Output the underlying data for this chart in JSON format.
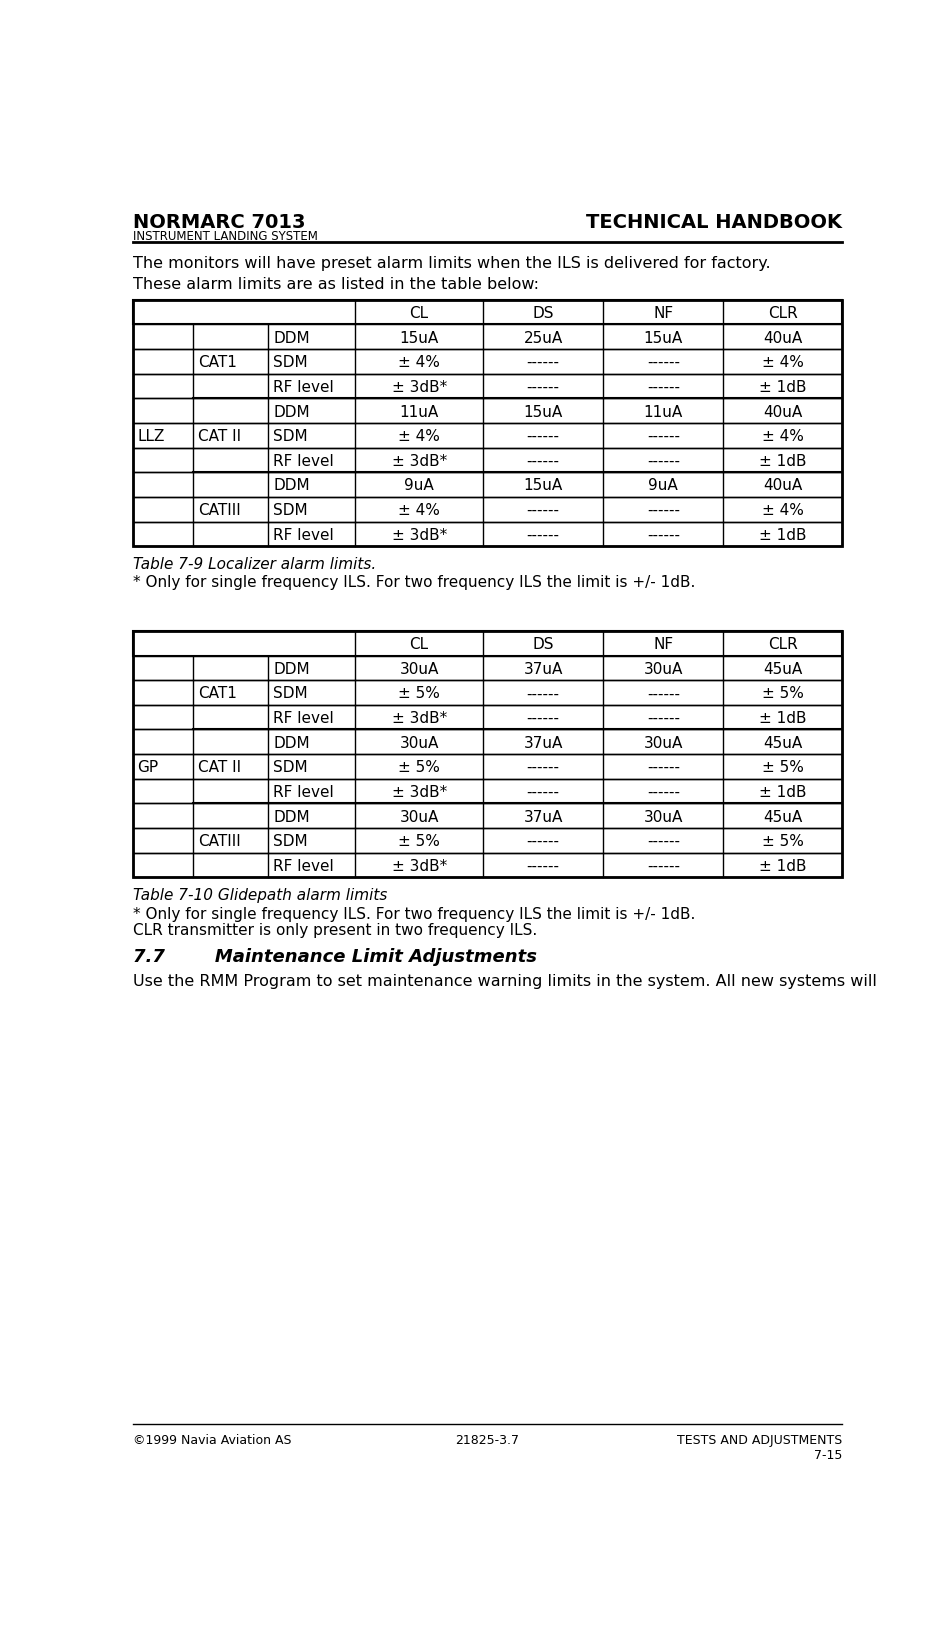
{
  "header_left": "NORMARC 7013",
  "header_right": "TECHNICAL HANDBOOK",
  "subheader": "INSTRUMENT LANDING SYSTEM",
  "footer_left": "©1999 Navia Aviation AS",
  "footer_center": "21825-3.7",
  "footer_right": "TESTS AND ADJUSTMENTS",
  "footer_page": "7-15",
  "body_text1": "The monitors will have preset alarm limits when the ILS is delivered for factory.",
  "body_text2": "These alarm limits are as listed in the table below:",
  "table_caption1": "Table 7-9 Localizer alarm limits.",
  "table_note1": "* Only for single frequency ILS. For two frequency ILS the limit is +/- 1dB.",
  "table_caption2": "Table 7-10 Glidepath alarm limits",
  "table_note2": "* Only for single frequency ILS. For two frequency ILS the limit is +/- 1dB.",
  "clr_note": "CLR transmitter is only present in two frequency ILS.",
  "section_title": "7.7        Maintenance Limit Adjustments",
  "section_text": "Use the RMM Program to set maintenance warning limits in the system. All new systems will",
  "llz_table": {
    "col_headers": [
      "CL",
      "DS",
      "NF",
      "CLR"
    ],
    "row_label": "LLZ",
    "categories": [
      "CAT1",
      "CAT II",
      "CATIII"
    ],
    "rows": [
      [
        "DDM",
        "15uA",
        "25uA",
        "15uA",
        "40uA"
      ],
      [
        "SDM",
        "± 4%",
        "------",
        "------",
        "± 4%"
      ],
      [
        "RF level",
        "± 3dB*",
        "------",
        "------",
        "± 1dB"
      ],
      [
        "DDM",
        "11uA",
        "15uA",
        "11uA",
        "40uA"
      ],
      [
        "SDM",
        "± 4%",
        "------",
        "------",
        "± 4%"
      ],
      [
        "RF level",
        "± 3dB*",
        "------",
        "------",
        "± 1dB"
      ],
      [
        "DDM",
        "9uA",
        "15uA",
        "9uA",
        "40uA"
      ],
      [
        "SDM",
        "± 4%",
        "------",
        "------",
        "± 4%"
      ],
      [
        "RF level",
        "± 3dB*",
        "------",
        "------",
        "± 1dB"
      ]
    ]
  },
  "gp_table": {
    "col_headers": [
      "CL",
      "DS",
      "NF",
      "CLR"
    ],
    "row_label": "GP",
    "categories": [
      "CAT1",
      "CAT II",
      "CATIII"
    ],
    "rows": [
      [
        "DDM",
        "30uA",
        "37uA",
        "30uA",
        "45uA"
      ],
      [
        "SDM",
        "± 5%",
        "------",
        "------",
        "± 5%"
      ],
      [
        "RF level",
        "± 3dB*",
        "------",
        "------",
        "± 1dB"
      ],
      [
        "DDM",
        "30uA",
        "37uA",
        "30uA",
        "45uA"
      ],
      [
        "SDM",
        "± 5%",
        "------",
        "------",
        "± 5%"
      ],
      [
        "RF level",
        "± 3dB*",
        "------",
        "------",
        "± 1dB"
      ],
      [
        "DDM",
        "30uA",
        "37uA",
        "30uA",
        "45uA"
      ],
      [
        "SDM",
        "± 5%",
        "------",
        "------",
        "± 5%"
      ],
      [
        "RF level",
        "± 3dB*",
        "------",
        "------",
        "± 1dB"
      ]
    ]
  },
  "bg_color": "#ffffff",
  "text_color": "#000000",
  "header_font_size": 14,
  "body_font_size": 11.5,
  "table_font_size": 11,
  "caption_font_size": 11,
  "section_title_font_size": 13
}
